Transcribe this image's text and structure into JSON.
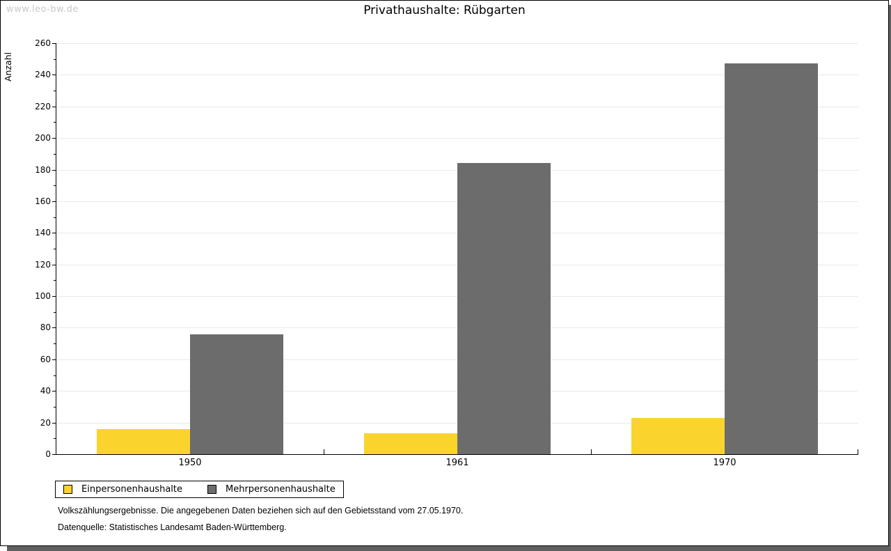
{
  "watermark": "www.leo-bw.de",
  "header": {
    "title": "Privathaushalte: Rübgarten"
  },
  "chart_data": {
    "type": "bar",
    "title": "Privathaushalte: Rübgarten",
    "categories": [
      "1950",
      "1961",
      "1970"
    ],
    "series": [
      {
        "name": "Einpersonenhaushalte",
        "color": "#fbd32d",
        "values": [
          16,
          13,
          23
        ]
      },
      {
        "name": "Mehrpersonenhaushalte",
        "color": "#6c6c6c",
        "values": [
          76,
          184,
          247
        ]
      }
    ],
    "xlabel": "",
    "ylabel": "Anzahl",
    "ylim": [
      0,
      260
    ],
    "ytick_step": 20,
    "yminor_step": 10,
    "grid": true,
    "gridline_color": "#e9e9e9",
    "legend_position": "bottom-left"
  },
  "footnotes": [
    "Volkszählungsergebnisse. Die angegebenen Daten beziehen sich auf den Gebietsstand vom 27.05.1970.",
    "Datenquelle: Statistisches Landesamt Baden-Württemberg."
  ],
  "colors": {
    "shadow": "#606060",
    "axis": "#000000",
    "watermark": "#c9c9c9",
    "background": "#ffffff"
  }
}
